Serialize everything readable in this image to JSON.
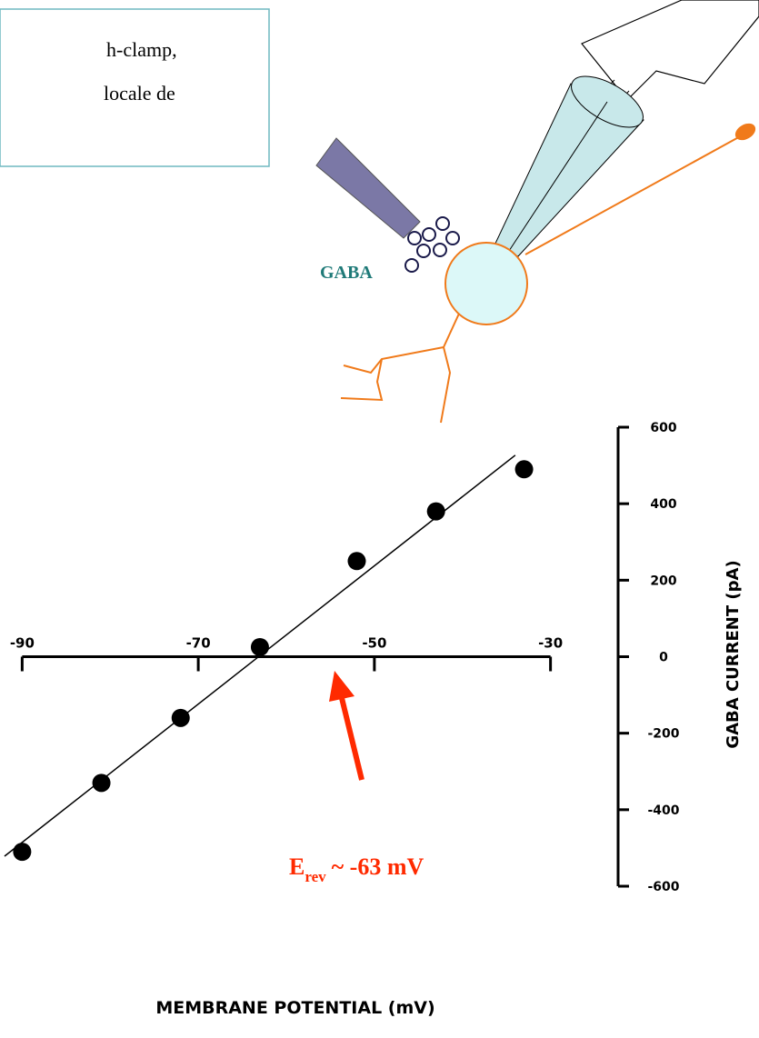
{
  "text_box": {
    "lines": [
      "h-clamp,",
      "locale de"
    ]
  },
  "diagram": {
    "label": "GABA"
  },
  "chart_data": {
    "type": "scatter",
    "x_label": "MEMBRANE POTENTIAL (mV)",
    "y_label": "GABA CURRENT (pA)",
    "x": [
      -90,
      -81,
      -72,
      -63,
      -52,
      -43,
      -33
    ],
    "values": [
      -510,
      -330,
      -160,
      25,
      250,
      380,
      490
    ],
    "color": "#000000",
    "fit_line": true,
    "xlim": [
      -92,
      -28
    ],
    "ylim": [
      -600,
      600
    ],
    "xticks": [
      -90,
      -70,
      -50,
      -30
    ],
    "yticks": [
      600,
      400,
      200,
      0,
      -200,
      -400,
      -600
    ],
    "annotation": {
      "main": "E",
      "sub": "rev",
      "rest": "~ -63 mV",
      "color": "#ff2a00"
    }
  }
}
